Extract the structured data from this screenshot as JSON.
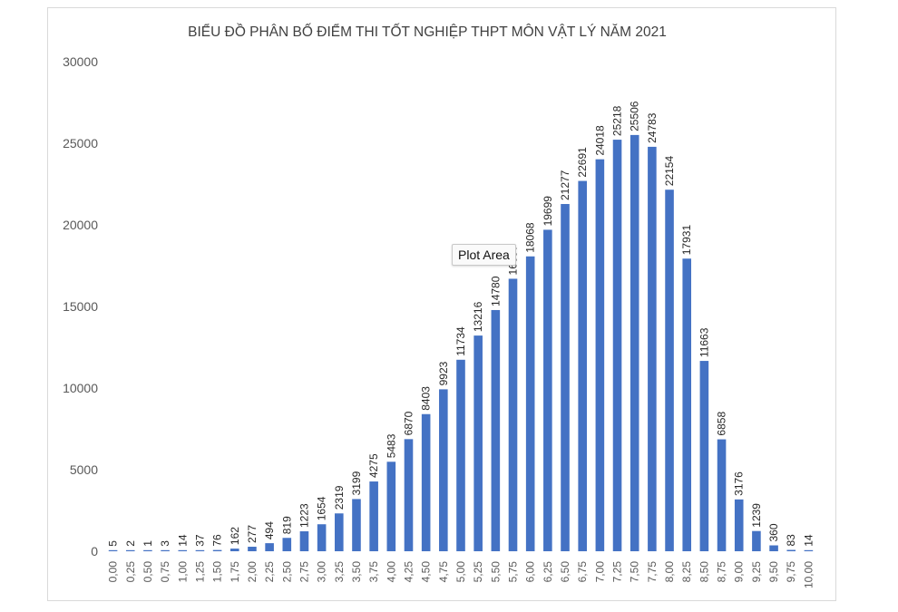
{
  "tooltip": {
    "label": "Plot Area"
  },
  "chart_data": {
    "type": "bar",
    "title": "BIỂU ĐỒ PHÂN BỐ ĐIỂM THI TỐT NGHIỆP THPT MÔN VẬT LÝ NĂM 2021",
    "xlabel": "",
    "ylabel": "",
    "ylim": [
      0,
      30000
    ],
    "yticks": [
      "0",
      "5000",
      "10000",
      "15000",
      "20000",
      "25000",
      "30000"
    ],
    "grid": false,
    "legend": "none",
    "bar_color": "#4472c4",
    "categories": [
      "0,00",
      "0,25",
      "0,50",
      "0,75",
      "1,00",
      "1,25",
      "1,50",
      "1,75",
      "2,00",
      "2,25",
      "2,50",
      "2,75",
      "3,00",
      "3,25",
      "3,50",
      "3,75",
      "4,00",
      "4,25",
      "4,50",
      "4,75",
      "5,00",
      "5,25",
      "5,50",
      "5,75",
      "6,00",
      "6,25",
      "6,50",
      "6,75",
      "7,00",
      "7,25",
      "7,50",
      "7,75",
      "8,00",
      "8,25",
      "8,50",
      "8,75",
      "9,00",
      "9,25",
      "9,50",
      "9,75",
      "10,00"
    ],
    "values": [
      5,
      2,
      1,
      3,
      14,
      37,
      76,
      162,
      277,
      494,
      819,
      1223,
      1654,
      2319,
      3199,
      4275,
      5483,
      6870,
      8403,
      9923,
      11734,
      13216,
      14780,
      16697,
      18068,
      19699,
      21277,
      22691,
      24018,
      25218,
      25506,
      24783,
      22154,
      17931,
      11663,
      6858,
      3176,
      1239,
      360,
      83,
      14
    ]
  }
}
